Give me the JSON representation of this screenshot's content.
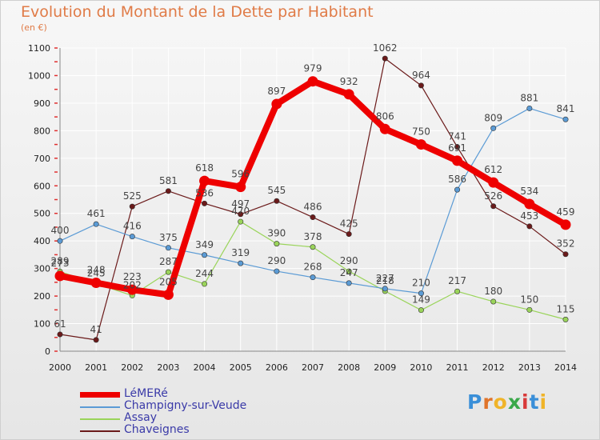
{
  "title": "Evolution du Montant de la Dette par Habitant",
  "subtitle": "(en €)",
  "brand": "Proxiti",
  "colors": {
    "title": "#e07b47",
    "legend_text": "#3a3aa8",
    "axis_text": "#222222",
    "label_text": "#444444",
    "grid": "#ffffff"
  },
  "chart_data": {
    "type": "line",
    "x": [
      2000,
      2001,
      2002,
      2003,
      2004,
      2005,
      2006,
      2007,
      2008,
      2009,
      2010,
      2011,
      2012,
      2013,
      2014
    ],
    "ylim": [
      0,
      1100
    ],
    "yticks": [
      0,
      100,
      200,
      300,
      400,
      500,
      600,
      700,
      800,
      900,
      1000,
      1100
    ],
    "grid": true,
    "legend_position": "bottom-left",
    "series": [
      {
        "name": "LéMERé",
        "color": "#ee0000",
        "values": [
          273,
          248,
          223,
          205,
          618,
          596,
          897,
          979,
          932,
          806,
          750,
          691,
          612,
          534,
          459
        ]
      },
      {
        "name": "Champigny-sur-Veude",
        "color": "#5b9bd5",
        "values": [
          400,
          461,
          416,
          375,
          349,
          319,
          290,
          268,
          247,
          227,
          210,
          586,
          809,
          881,
          841
        ]
      },
      {
        "name": "Assay",
        "color": "#9ad45a",
        "values": [
          289,
          245,
          202,
          287,
          244,
          470,
          390,
          378,
          290,
          218,
          149,
          217,
          180,
          150,
          115
        ]
      },
      {
        "name": "Chaveignes",
        "color": "#6b1a1a",
        "values": [
          61,
          41,
          525,
          581,
          536,
          497,
          545,
          486,
          425,
          1062,
          964,
          741,
          526,
          453,
          352
        ]
      }
    ]
  }
}
